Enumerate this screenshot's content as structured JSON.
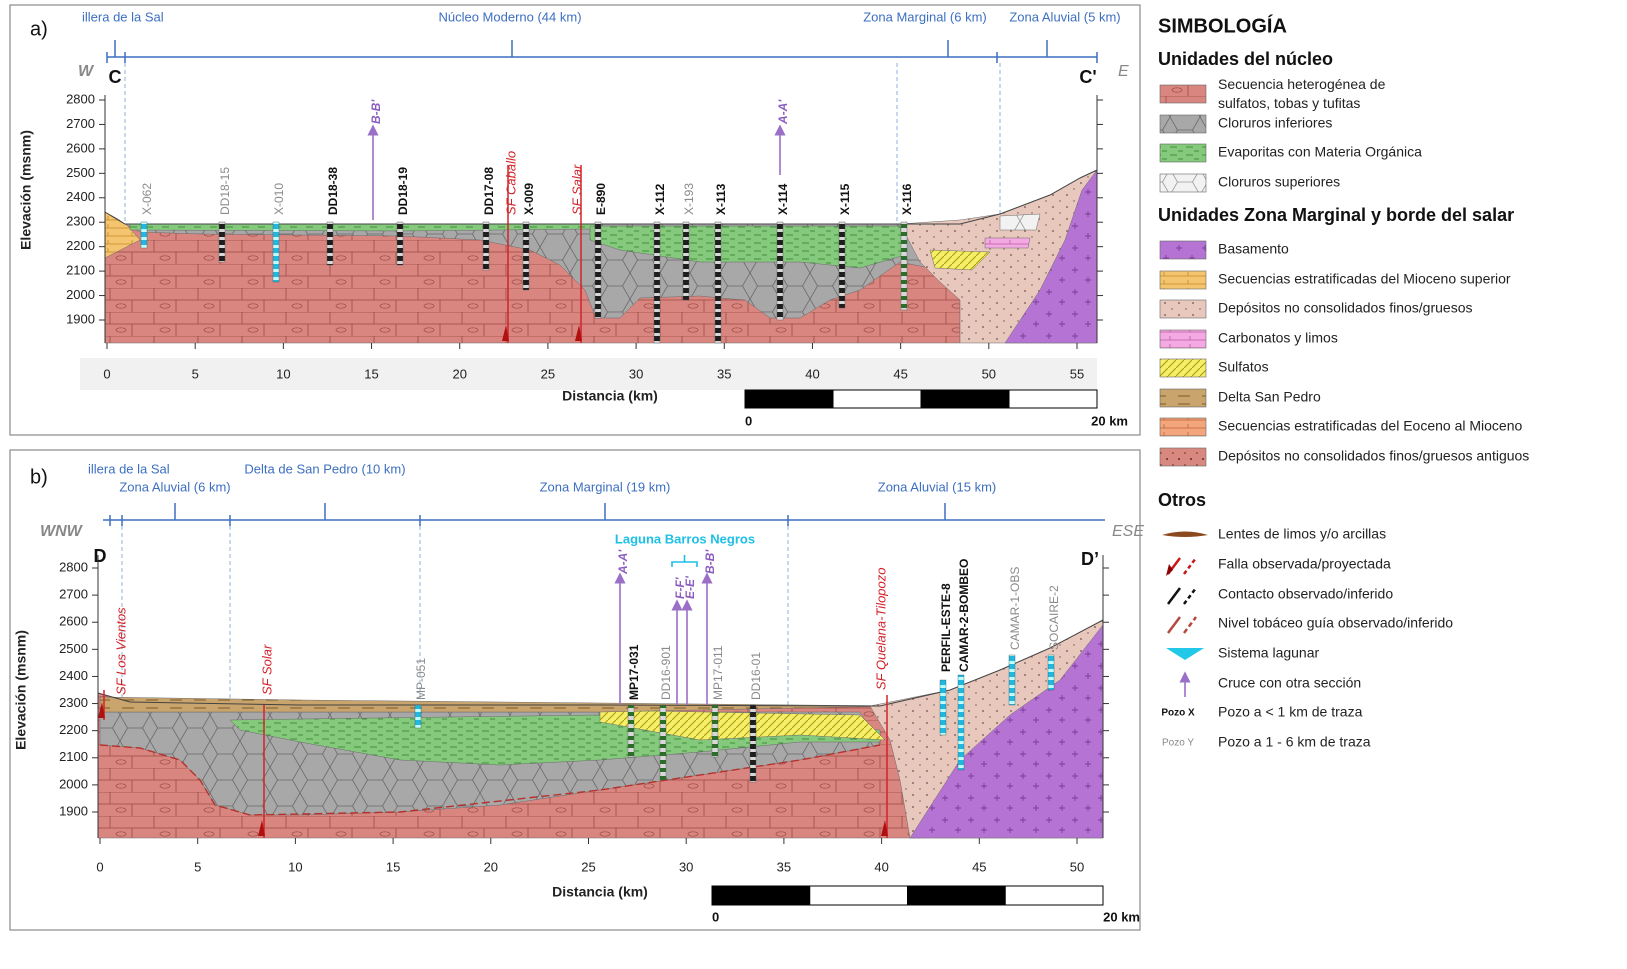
{
  "panel_a": {
    "label": "a)",
    "zones": [
      "illera de la Sal",
      "Núcleo Moderno (44 km)",
      "Zona Marginal (6 km)",
      "Zona Aluvial (5 km)"
    ],
    "ends": {
      "west": "W",
      "start": "C",
      "end": "C'",
      "east": "E"
    },
    "y_axis_title": "Elevación (msnm)",
    "yticks": [
      1900,
      2000,
      2100,
      2200,
      2300,
      2400,
      2500,
      2600,
      2700,
      2800
    ],
    "xticks": [
      0,
      5,
      10,
      15,
      20,
      25,
      30,
      35,
      40,
      45,
      50,
      55
    ],
    "x_axis_title": "Distancia (km)",
    "wells": [
      "X-062",
      "DD18-15",
      "X-010",
      "DD18-38",
      "DD18-19",
      "DD17-08",
      "X-009",
      "E-890",
      "X-112",
      "X-193",
      "X-113",
      "X-114",
      "X-115",
      "X-116"
    ],
    "crossings": [
      "B-B'",
      "A-A'"
    ],
    "faults": [
      "SF Caballo",
      "SF Salar"
    ],
    "scale_bar": [
      "0",
      "20 km"
    ]
  },
  "panel_b": {
    "label": "b)",
    "zones": [
      "illera de la Sal",
      "Zona Aluvial (6 km)",
      "Delta de San Pedro (10 km)",
      "Zona Marginal (19 km)",
      "Zona Aluvial (15 km)"
    ],
    "ends": {
      "west": "WNW",
      "start": "D",
      "end": "D’",
      "east": "ESE"
    },
    "y_axis_title": "Elevación (msnm)",
    "yticks": [
      1900,
      2000,
      2100,
      2200,
      2300,
      2400,
      2500,
      2600,
      2700,
      2800
    ],
    "xticks": [
      0,
      5,
      10,
      15,
      20,
      25,
      30,
      35,
      40,
      45,
      50
    ],
    "x_axis_title": "Distancia (km)",
    "lake": "Laguna Barros Negros",
    "wells": [
      "MP-051",
      "MP17-031",
      "DD16-901",
      "MP17-011",
      "DD16-01",
      "PERFIL-ESTE-8",
      "CAMAR-2-BOMBEO",
      "CAMAR-1-OBS",
      "SOCAIRE-2"
    ],
    "crossings": [
      "A-A'",
      "F-F'",
      "E-E'",
      "B-B'"
    ],
    "faults": [
      "SF Los Vientos",
      "SF Solar",
      "SF Quelana-Tilopozo"
    ],
    "scale_bar": [
      "0",
      "20 km"
    ]
  },
  "legend": {
    "title": "SIMBOLOGÍA",
    "sections": [
      {
        "title": "Unidades del núcleo",
        "items": [
          "Secuencia heterogénea de sulfatos, tobas y tufitas",
          "Cloruros inferiores",
          "Evaporitas con Materia Orgánica",
          "Cloruros superiores"
        ]
      },
      {
        "title": "Unidades Zona Marginal y borde del salar",
        "items": [
          "Basamento",
          "Secuencias estratificadas del Mioceno superior",
          "Depósitos no consolidados finos/gruesos",
          "Carbonatos y limos",
          "Sulfatos",
          "Delta San Pedro",
          "Secuencias estratificadas del Eoceno al Mioceno",
          "Depósitos no consolidados finos/gruesos antiguos"
        ]
      },
      {
        "title": "Otros",
        "items": [
          "Lentes de limos y/o arcillas",
          "Falla observada/proyectada",
          "Contacto observado/inferido",
          "Nivel tobáceo guía observado/inferido",
          "Sistema lagunar",
          "Cruce con otra sección",
          "Pozo a < 1 km de traza",
          "Pozo a 1 - 6 km de traza"
        ]
      }
    ],
    "well_samples": [
      "Pozo X",
      "Pozo Y"
    ]
  }
}
